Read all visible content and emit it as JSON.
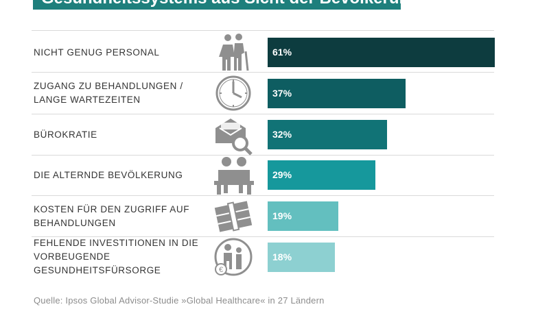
{
  "title": "Gesundheitssystems aus Sicht der Bevölkerung",
  "source": "Quelle: Ipsos Global Advisor-Studie »Global Healthcare« in 27 Ländern",
  "chart_data": {
    "type": "bar",
    "orientation": "horizontal",
    "title": "Gesundheitssystems aus Sicht der Bevölkerung",
    "categories": [
      [
        "NICHT GENUG PERSONAL"
      ],
      [
        "ZUGANG ZU BEHANDLUNGEN /",
        "LANGE WARTEZEITEN"
      ],
      [
        "BÜROKRATIE"
      ],
      [
        "DIE ALTERNDE BEVÖLKERUNG"
      ],
      [
        "KOSTEN FÜR DEN ZUGRIFF AUF",
        "BEHANDLUNGEN"
      ],
      [
        "FEHLENDE INVESTITIONEN IN DIE",
        "VORBEUGENDE",
        "GESUNDHEITSFÜRSORGE"
      ]
    ],
    "values": [
      61,
      37,
      32,
      29,
      19,
      18
    ],
    "value_labels": [
      "61%",
      "37%",
      "32%",
      "29%",
      "19%",
      "18%"
    ],
    "bar_colors": [
      "#0d3c3f",
      "#0e5d61",
      "#117376",
      "#16989c",
      "#63bfbf",
      "#8dd0d1"
    ],
    "icons": [
      "elderly-couple-cane-icon",
      "clock-icon",
      "envelope-magnifier-icon",
      "elderly-people-bench-icon",
      "money-stack-icon",
      "caregiver-euro-icon"
    ],
    "xlim": [
      0,
      61
    ],
    "grid": false,
    "legend": "none"
  }
}
